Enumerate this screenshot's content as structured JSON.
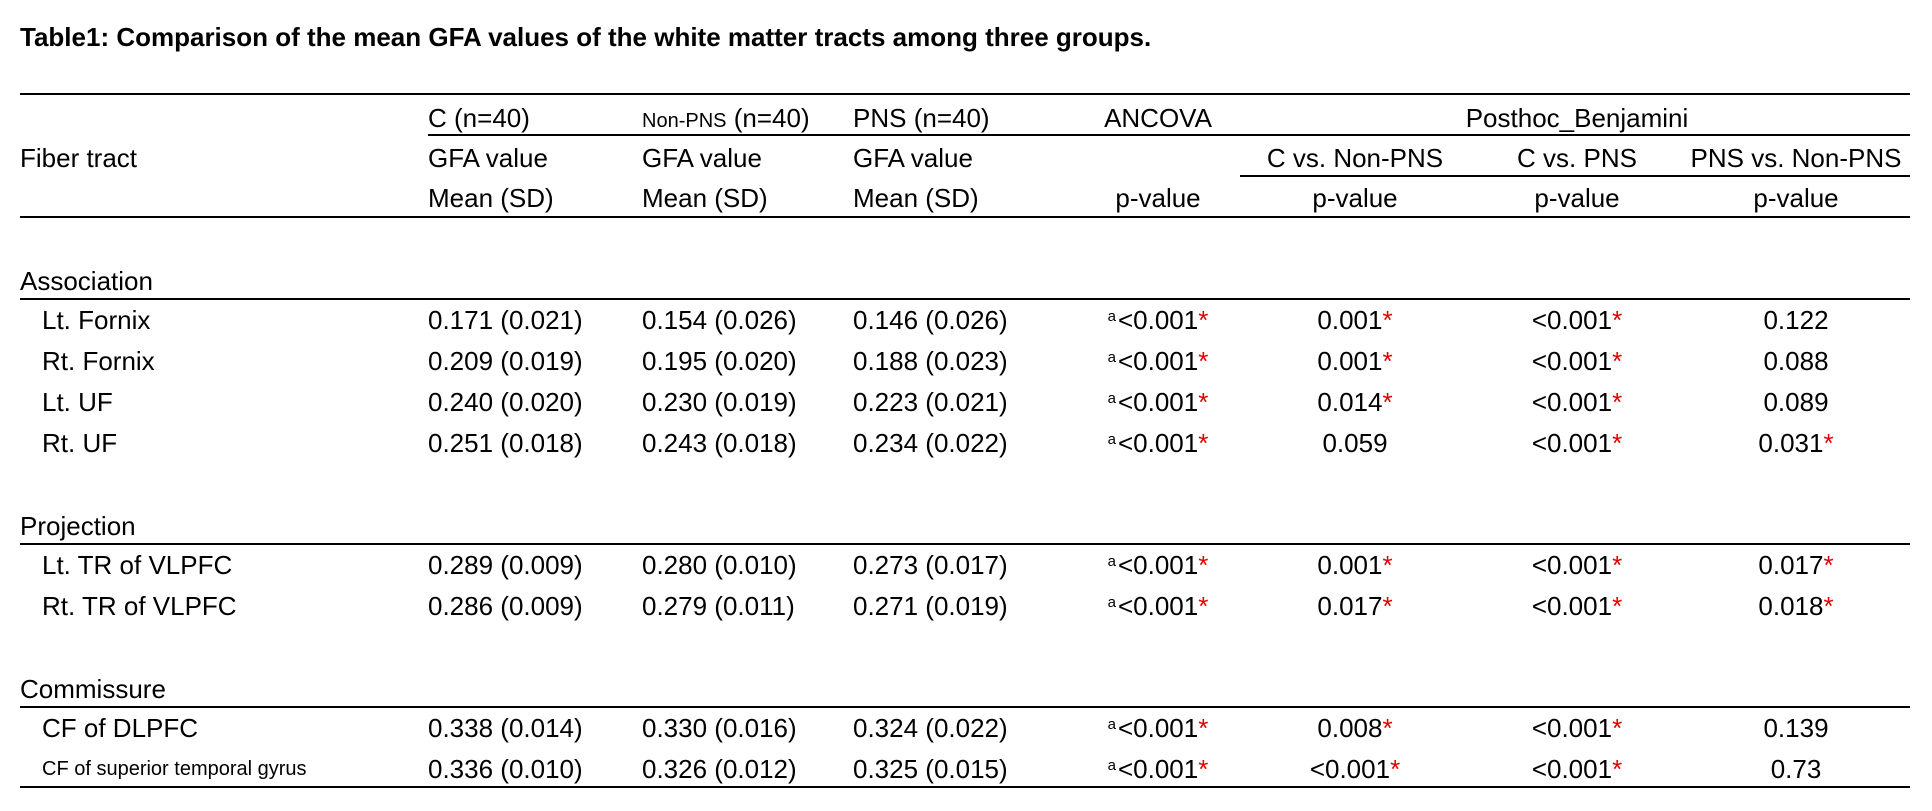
{
  "title": "Table1: Comparison of the mean GFA values of the white matter tracts among three groups.",
  "header": {
    "fiber_tract": "Fiber tract",
    "groups": [
      {
        "name": "C",
        "n": "(n=40)",
        "line1": "GFA value",
        "line2": "Mean (SD)"
      },
      {
        "name": "Non-PNS",
        "n": "(n=40)",
        "line1": "GFA value",
        "line2": "Mean (SD)"
      },
      {
        "name": "PNS",
        "n": "(n=40)",
        "line1": "GFA value",
        "line2": "Mean (SD)"
      }
    ],
    "ancova": {
      "name": "ANCOVA",
      "line2": "p-value"
    },
    "posthoc": {
      "name": "Posthoc_Benjamini",
      "comparisons": [
        {
          "name": "C vs. Non-PNS",
          "line2": "p-value"
        },
        {
          "name": "C vs. PNS",
          "line2": "p-value"
        },
        {
          "name": "PNS vs. Non-PNS",
          "line2": "p-value"
        }
      ]
    }
  },
  "sections": [
    {
      "name": "Association",
      "rows": [
        {
          "tract": "Lt. Fornix",
          "means": [
            "0.171 (0.021)",
            "0.154 (0.026)",
            "0.146 (0.026)"
          ],
          "ancova": {
            "sup": "a",
            "value": "<0.001",
            "star": "*"
          },
          "posthoc": [
            {
              "value": "0.001",
              "star": "*"
            },
            {
              "value": "<0.001",
              "star": "*"
            },
            {
              "value": "0.122"
            }
          ]
        },
        {
          "tract": "Rt. Fornix",
          "means": [
            "0.209 (0.019)",
            "0.195 (0.020)",
            "0.188 (0.023)"
          ],
          "ancova": {
            "sup": "a",
            "value": "<0.001",
            "star": "*"
          },
          "posthoc": [
            {
              "value": "0.001",
              "star": "*"
            },
            {
              "value": "<0.001",
              "star": "*"
            },
            {
              "value": "0.088"
            }
          ]
        },
        {
          "tract": "Lt. UF",
          "means": [
            "0.240 (0.020)",
            "0.230 (0.019)",
            "0.223 (0.021)"
          ],
          "ancova": {
            "sup": "a",
            "value": "<0.001",
            "star": "*"
          },
          "posthoc": [
            {
              "value": "0.014",
              "star": "*"
            },
            {
              "value": "<0.001",
              "star": "*"
            },
            {
              "value": "0.089"
            }
          ]
        },
        {
          "tract": "Rt. UF",
          "means": [
            "0.251 (0.018)",
            "0.243 (0.018)",
            "0.234 (0.022)"
          ],
          "ancova": {
            "sup": "a",
            "value": "<0.001",
            "star": "*"
          },
          "posthoc": [
            {
              "value": "0.059"
            },
            {
              "value": "<0.001",
              "star": "*"
            },
            {
              "value": "0.031",
              "star": "*"
            }
          ]
        }
      ]
    },
    {
      "name": "Projection",
      "rows": [
        {
          "tract": "Lt. TR of VLPFC",
          "means": [
            "0.289 (0.009)",
            "0.280 (0.010)",
            "0.273 (0.017)"
          ],
          "ancova": {
            "sup": "a",
            "value": "<0.001",
            "star": "*"
          },
          "posthoc": [
            {
              "value": "0.001",
              "star": "*"
            },
            {
              "value": "<0.001",
              "star": "*"
            },
            {
              "value": "0.017",
              "star": "*"
            }
          ]
        },
        {
          "tract": "Rt. TR of VLPFC",
          "means": [
            "0.286 (0.009)",
            "0.279 (0.011)",
            "0.271 (0.019)"
          ],
          "ancova": {
            "sup": "a",
            "value": "<0.001",
            "star": "*"
          },
          "posthoc": [
            {
              "value": "0.017",
              "star": "*"
            },
            {
              "value": "<0.001",
              "star": "*"
            },
            {
              "value": "0.018",
              "star": "*"
            }
          ]
        }
      ]
    },
    {
      "name": "Commissure",
      "rows": [
        {
          "tract": "CF of DLPFC",
          "means": [
            "0.338 (0.014)",
            "0.330 (0.016)",
            "0.324 (0.022)"
          ],
          "ancova": {
            "sup": "a",
            "value": "<0.001",
            "star": "*"
          },
          "posthoc": [
            {
              "value": "0.008",
              "star": "*"
            },
            {
              "value": "<0.001",
              "star": "*"
            },
            {
              "value": "0.139"
            }
          ]
        },
        {
          "tract": "CF of superior temporal gyrus",
          "means": [
            "0.336 (0.010)",
            "0.326 (0.012)",
            "0.325 (0.015)"
          ],
          "ancova": {
            "sup": "a",
            "value": "<0.001",
            "star": "*"
          },
          "posthoc": [
            {
              "value": "<0.001",
              "star": "*"
            },
            {
              "value": "<0.001",
              "star": "*"
            },
            {
              "value": "0.73"
            }
          ]
        }
      ]
    }
  ]
}
